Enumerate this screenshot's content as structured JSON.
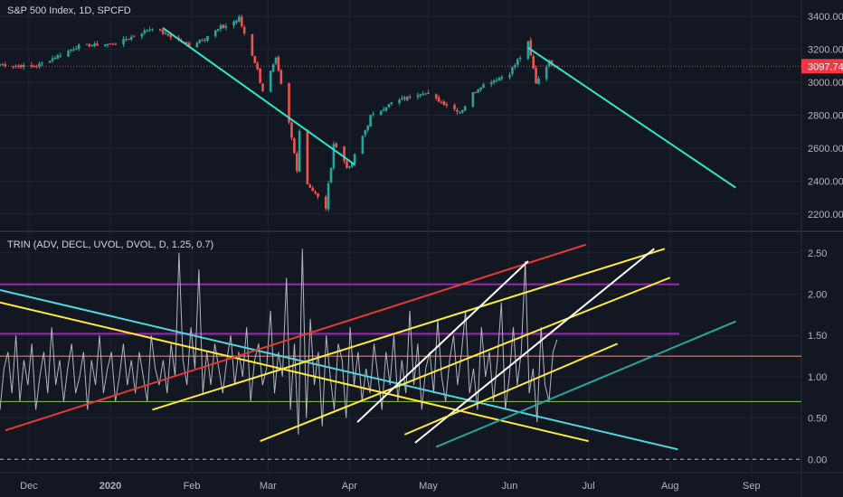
{
  "header": {
    "main_title": "S&P 500 Index, 1D, SPCFD",
    "indicator_title": "TRIN (ADV, DECL, UVOL, DVOL, D, 1.25, 0.7)"
  },
  "colors": {
    "background": "#131722",
    "up_candle": "#26a69a",
    "down_candle": "#ef5350",
    "price_line": "#f23645",
    "trend_cyan": "#2ee6c8",
    "trend_cyan_light": "#4dd9e0",
    "trend_yellow": "#ffeb3b",
    "trend_red": "#e53935",
    "trend_white": "#ffffff",
    "trend_teal": "#26a69a",
    "level_purple": "#9c27b0",
    "level_pink": "#f28b82",
    "level_green": "#8bc34a",
    "trin_line": "#b2b5be"
  },
  "chart_data": [
    {
      "type": "candlestick",
      "title": "S&P 500 Index, 1D, SPCFD",
      "x_axis": {
        "labels": [
          "Dec",
          "2020",
          "Feb",
          "Mar",
          "Apr",
          "May",
          "Jun",
          "Jul",
          "Aug",
          "Sep"
        ],
        "range": [
          "2019-11-20",
          "2020-09-20"
        ]
      },
      "y_axis": {
        "ticks": [
          "3400.00",
          "3200.00",
          "3000.00",
          "2800.00",
          "2600.00",
          "2400.00",
          "2200.00"
        ],
        "range": [
          2100,
          3500
        ]
      },
      "last_price": {
        "value": 3097.74,
        "label": "3097.74"
      },
      "anchors": [
        {
          "date": "2019-11-20",
          "close": 3108
        },
        {
          "date": "2019-12-03",
          "close": 3093
        },
        {
          "date": "2019-12-20",
          "close": 3221
        },
        {
          "date": "2020-01-03",
          "close": 3235
        },
        {
          "date": "2020-01-17",
          "close": 3330
        },
        {
          "date": "2020-01-31",
          "close": 3225
        },
        {
          "date": "2020-02-19",
          "close": 3386
        },
        {
          "date": "2020-02-25",
          "close": 3128
        },
        {
          "date": "2020-02-28",
          "close": 2954
        },
        {
          "date": "2020-03-04",
          "close": 3130
        },
        {
          "date": "2020-03-09",
          "close": 2746
        },
        {
          "date": "2020-03-12",
          "close": 2480
        },
        {
          "date": "2020-03-13",
          "close": 2711
        },
        {
          "date": "2020-03-16",
          "close": 2386
        },
        {
          "date": "2020-03-23",
          "close": 2237
        },
        {
          "date": "2020-03-26",
          "close": 2630
        },
        {
          "date": "2020-04-01",
          "close": 2470
        },
        {
          "date": "2020-04-09",
          "close": 2790
        },
        {
          "date": "2020-04-17",
          "close": 2875
        },
        {
          "date": "2020-04-29",
          "close": 2940
        },
        {
          "date": "2020-05-13",
          "close": 2820
        },
        {
          "date": "2020-05-20",
          "close": 2971
        },
        {
          "date": "2020-06-01",
          "close": 3055
        },
        {
          "date": "2020-06-08",
          "close": 3232
        },
        {
          "date": "2020-06-11",
          "close": 3002
        },
        {
          "date": "2020-06-16",
          "close": 3125
        },
        {
          "date": "2020-06-19",
          "close": 3098
        }
      ],
      "trendlines": [
        {
          "color": "trend_cyan",
          "from": {
            "date": "2020-01-21",
            "value": 3330
          },
          "to": {
            "date": "2020-04-03",
            "value": 2500
          }
        },
        {
          "color": "trend_cyan",
          "from": {
            "date": "2020-06-08",
            "value": 3210
          },
          "to": {
            "date": "2020-08-26",
            "value": 2360
          }
        }
      ]
    },
    {
      "type": "line",
      "title": "TRIN (ADV, DECL, UVOL, DVOL, D, 1.25, 0.7)",
      "y_axis": {
        "ticks": [
          "2.50",
          "2.00",
          "1.50",
          "1.00",
          "0.50",
          "0.00"
        ],
        "range": [
          -0.15,
          2.75
        ]
      },
      "levels": [
        {
          "value": 2.12,
          "color": "level_purple",
          "style": "solid"
        },
        {
          "value": 1.52,
          "color": "level_purple",
          "style": "solid"
        },
        {
          "value": 1.25,
          "color": "level_pink",
          "style": "solid"
        },
        {
          "value": 0.7,
          "color": "level_green",
          "style": "solid"
        },
        {
          "value": 0.0,
          "color": "trin_line",
          "style": "dashed"
        }
      ],
      "series": [
        {
          "color": "trin_line",
          "values": [
            0.6,
            1.1,
            1.3,
            0.8,
            1.5,
            0.7,
            1.2,
            0.9,
            1.4,
            0.6,
            1.0,
            1.3,
            0.8,
            1.6,
            0.9,
            1.2,
            0.7,
            1.1,
            1.4,
            0.8,
            1.0,
            1.3,
            0.6,
            1.2,
            0.9,
            1.5,
            0.8,
            1.1,
            1.3,
            0.7,
            1.0,
            1.4,
            0.9,
            1.2,
            0.8,
            1.3,
            1.0,
            0.7,
            1.5,
            1.1,
            0.9,
            1.2,
            0.8,
            1.4,
            1.0,
            2.5,
            1.2,
            0.9,
            1.6,
            1.1,
            2.3,
            0.8,
            1.3,
            0.9,
            1.4,
            1.1,
            0.8,
            1.2,
            1.5,
            0.9,
            1.3,
            1.0,
            1.6,
            0.7,
            1.2,
            1.4,
            0.9,
            1.1,
            1.8,
            0.8,
            1.3,
            1.0,
            2.2,
            0.6,
            1.4,
            0.3,
            2.55,
            0.5,
            1.7,
            0.9,
            1.3,
            0.4,
            1.5,
            1.0,
            0.6,
            1.4,
            1.2,
            0.5,
            1.6,
            0.9,
            1.3,
            0.7,
            1.1,
            0.8,
            1.4,
            1.0,
            0.6,
            1.3,
            0.9,
            1.5,
            0.7,
            1.2,
            0.8,
            1.8,
            0.9,
            1.4,
            0.6,
            1.1,
            1.3,
            0.8,
            1.7,
            1.0,
            0.7,
            1.2,
            1.5,
            0.9,
            1.3,
            1.8,
            0.8,
            1.1,
            0.6,
            1.6,
            1.0,
            1.3,
            0.7,
            1.2,
            1.9,
            0.6,
            1.0,
            1.6,
            0.9,
            1.3,
            2.4,
            0.8,
            1.1,
            0.45,
            1.6,
            0.9,
            0.7,
            1.3,
            1.45
          ]
        }
      ],
      "trendlines": [
        {
          "color": "trend_cyan_light",
          "from": {
            "date": "2019-11-20",
            "value": 2.05
          },
          "to": {
            "date": "2020-08-04",
            "value": 0.12
          }
        },
        {
          "color": "trend_yellow",
          "from": {
            "date": "2019-11-20",
            "value": 1.9
          },
          "to": {
            "date": "2020-07-01",
            "value": 0.22
          }
        },
        {
          "color": "trend_red",
          "from": {
            "date": "2019-11-22",
            "value": 0.35
          },
          "to": {
            "date": "2020-06-30",
            "value": 2.6
          }
        },
        {
          "color": "trend_yellow",
          "from": {
            "date": "2020-01-17",
            "value": 0.6
          },
          "to": {
            "date": "2020-07-30",
            "value": 2.55
          }
        },
        {
          "color": "trend_yellow",
          "from": {
            "date": "2020-02-27",
            "value": 0.22
          },
          "to": {
            "date": "2020-08-01",
            "value": 2.2
          }
        },
        {
          "color": "trend_white",
          "from": {
            "date": "2020-04-04",
            "value": 0.45
          },
          "to": {
            "date": "2020-06-08",
            "value": 2.4
          }
        },
        {
          "color": "trend_white",
          "from": {
            "date": "2020-04-26",
            "value": 0.2
          },
          "to": {
            "date": "2020-07-26",
            "value": 2.55
          }
        },
        {
          "color": "trend_yellow",
          "from": {
            "date": "2020-04-22",
            "value": 0.3
          },
          "to": {
            "date": "2020-07-12",
            "value": 1.4
          }
        },
        {
          "color": "trend_teal",
          "from": {
            "date": "2020-05-04",
            "value": 0.15
          },
          "to": {
            "date": "2020-08-26",
            "value": 1.67
          }
        }
      ]
    }
  ]
}
